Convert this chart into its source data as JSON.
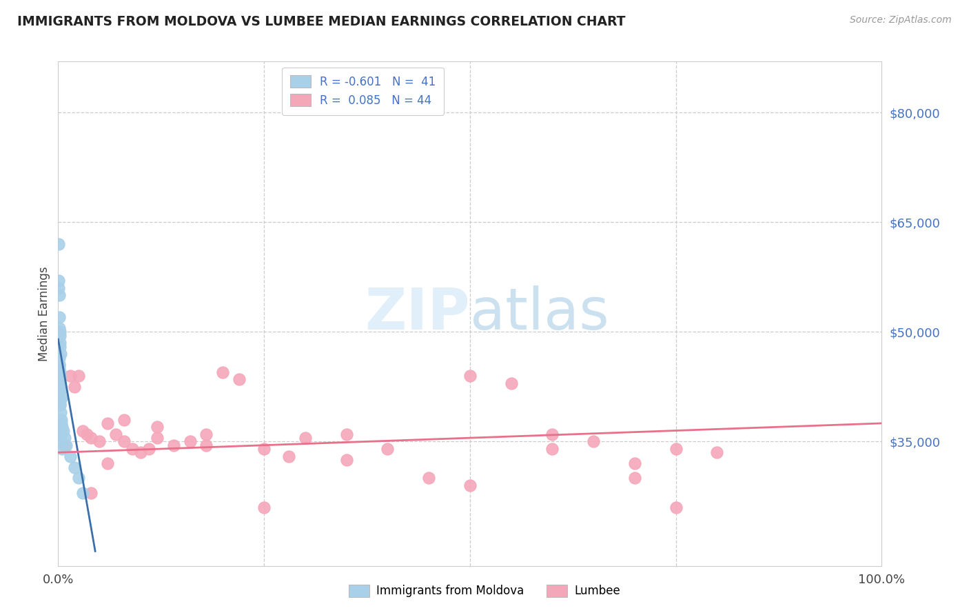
{
  "title": "IMMIGRANTS FROM MOLDOVA VS LUMBEE MEDIAN EARNINGS CORRELATION CHART",
  "source": "Source: ZipAtlas.com",
  "ylabel": "Median Earnings",
  "ytick_labels": [
    "$35,000",
    "$50,000",
    "$65,000",
    "$80,000"
  ],
  "ytick_values": [
    35000,
    50000,
    65000,
    80000
  ],
  "ylim": [
    18000,
    87000
  ],
  "xlim": [
    0.0,
    100.0
  ],
  "color_moldova": "#a8d0e8",
  "color_lumbee": "#f4a7b9",
  "color_moldova_line": "#3a6faa",
  "color_lumbee_line": "#e8708a",
  "color_title": "#222222",
  "color_yticks": "#4472c4",
  "color_source": "#999999",
  "background_color": "#ffffff",
  "moldova_x": [
    0.05,
    0.08,
    0.1,
    0.12,
    0.15,
    0.18,
    0.2,
    0.22,
    0.25,
    0.28,
    0.1,
    0.12,
    0.15,
    0.18,
    0.2,
    0.22,
    0.25,
    0.28,
    0.3,
    0.35,
    0.2,
    0.25,
    0.3,
    0.35,
    0.4,
    0.5,
    0.6,
    0.8,
    1.0,
    1.5,
    2.0,
    2.5,
    3.0,
    0.08,
    0.1,
    0.15,
    0.2,
    0.25,
    0.3,
    0.4,
    0.5
  ],
  "moldova_y": [
    62000,
    57000,
    55000,
    52000,
    50500,
    50000,
    49500,
    48500,
    48000,
    47000,
    46500,
    45500,
    45000,
    44500,
    44000,
    43500,
    43000,
    42500,
    42000,
    41000,
    40500,
    40000,
    39000,
    38000,
    37500,
    37000,
    36500,
    35500,
    34500,
    33000,
    31500,
    30000,
    28000,
    56000,
    45500,
    44000,
    42000,
    40000,
    36000,
    35000,
    34000
  ],
  "lumbee_x": [
    0.8,
    1.5,
    2.0,
    2.5,
    3.0,
    3.5,
    4.0,
    5.0,
    6.0,
    7.0,
    8.0,
    9.0,
    10.0,
    11.0,
    12.0,
    14.0,
    16.0,
    18.0,
    20.0,
    22.0,
    25.0,
    28.0,
    30.0,
    35.0,
    40.0,
    45.0,
    50.0,
    55.0,
    60.0,
    65.0,
    70.0,
    75.0,
    80.0,
    4.0,
    6.0,
    8.0,
    12.0,
    18.0,
    25.0,
    35.0,
    50.0,
    60.0,
    70.0,
    75.0
  ],
  "lumbee_y": [
    34500,
    44000,
    42500,
    44000,
    36500,
    36000,
    35500,
    35000,
    37500,
    36000,
    35000,
    34000,
    33500,
    34000,
    35500,
    34500,
    35000,
    36000,
    44500,
    43500,
    34000,
    33000,
    35500,
    36000,
    34000,
    30000,
    44000,
    43000,
    36000,
    35000,
    30000,
    34000,
    33500,
    28000,
    32000,
    38000,
    37000,
    34500,
    26000,
    32500,
    29000,
    34000,
    32000,
    26000
  ],
  "mol_line_x0": 0.0,
  "mol_line_y0": 49000,
  "mol_line_x1": 4.5,
  "mol_line_y1": 20000,
  "lum_line_x0": 0.0,
  "lum_line_y0": 33500,
  "lum_line_x1": 100.0,
  "lum_line_y1": 37500,
  "legend1_r": "-0.601",
  "legend1_n": "41",
  "legend2_r": "0.085",
  "legend2_n": "44",
  "legend_title1": "Immigrants from Moldova",
  "legend_title2": "Lumbee"
}
